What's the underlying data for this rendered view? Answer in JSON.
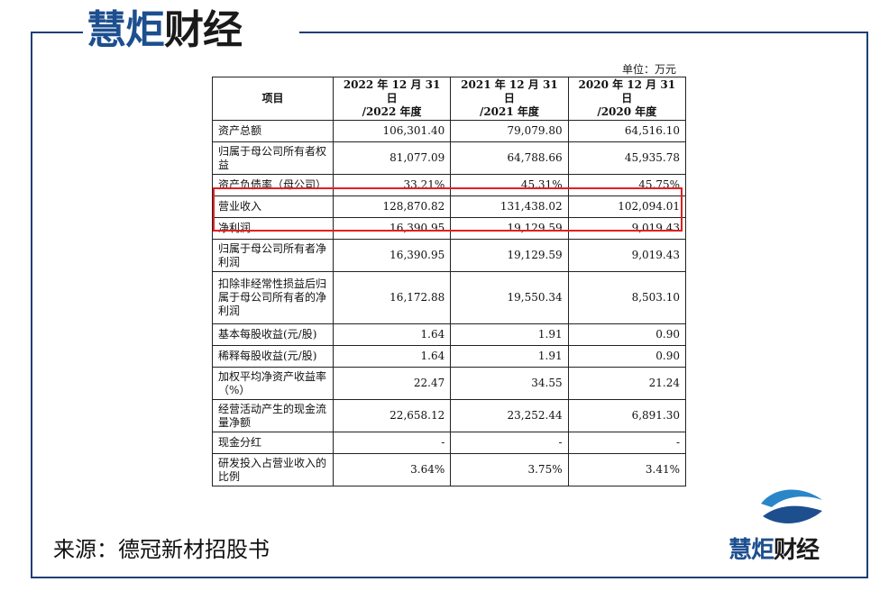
{
  "brand": {
    "blue": "慧炬",
    "dark": "财经"
  },
  "unit_label": "单位：万元",
  "table": {
    "headers": [
      "项目",
      "2022 年 12 月 31 日/2022 年度",
      "2021 年 12 月 31 日/2021 年度",
      "2020 年 12 月 31 日/2020 年度"
    ],
    "header_lines": [
      [
        "项目"
      ],
      [
        "2022 年 12 月 31 日",
        "/2022 年度"
      ],
      [
        "2021 年 12 月 31 日",
        "/2021 年度"
      ],
      [
        "2020 年 12 月 31 日",
        "/2020 年度"
      ]
    ],
    "rows": [
      {
        "label": "资产总额",
        "v2022": "106,301.40",
        "v2021": "79,079.80",
        "v2020": "64,516.10"
      },
      {
        "label": "归属于母公司所有者权益",
        "v2022": "81,077.09",
        "v2021": "64,788.66",
        "v2020": "45,935.78"
      },
      {
        "label": "资产负债率（母公司）",
        "v2022": "33.21%",
        "v2021": "45.31%",
        "v2020": "45.75%"
      },
      {
        "label": "营业收入",
        "v2022": "128,870.82",
        "v2021": "131,438.02",
        "v2020": "102,094.01"
      },
      {
        "label": "净利润",
        "v2022": "16,390.95",
        "v2021": "19,129.59",
        "v2020": "9,019.43"
      },
      {
        "label": "归属于母公司所有者净利润",
        "v2022": "16,390.95",
        "v2021": "19,129.59",
        "v2020": "9,019.43"
      },
      {
        "label": "扣除非经常性损益后归属于母公司所有者的净利润",
        "v2022": "16,172.88",
        "v2021": "19,550.34",
        "v2020": "8,503.10"
      },
      {
        "label": "基本每股收益(元/股)",
        "v2022": "1.64",
        "v2021": "1.91",
        "v2020": "0.90"
      },
      {
        "label": "稀释每股收益(元/股)",
        "v2022": "1.64",
        "v2021": "1.91",
        "v2020": "0.90"
      },
      {
        "label": "加权平均净资产收益率（%）",
        "v2022": "22.47",
        "v2021": "34.55",
        "v2020": "21.24"
      },
      {
        "label": "经营活动产生的现金流量净额",
        "v2022": "22,658.12",
        "v2021": "23,252.44",
        "v2020": "6,891.30"
      },
      {
        "label": "现金分红",
        "v2022": "-",
        "v2021": "-",
        "v2020": "-"
      },
      {
        "label": "研发投入占营业收入的比例",
        "v2022": "3.64%",
        "v2021": "3.75%",
        "v2020": "3.41%"
      }
    ]
  },
  "source_text": "来源：德冠新材招股书",
  "colors": {
    "brand_blue": "#1d4f8f",
    "frame": "#1e3f73",
    "highlight": "#e02020"
  }
}
